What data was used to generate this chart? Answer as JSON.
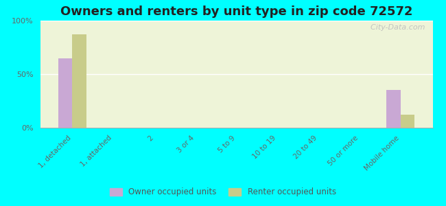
{
  "title": "Owners and renters by unit type in zip code 72572",
  "categories": [
    "1, detached",
    "1, attached",
    "2",
    "3 or 4",
    "5 to 9",
    "10 to 19",
    "20 to 49",
    "50 or more",
    "Mobile home"
  ],
  "owner_values": [
    65,
    0,
    0,
    0,
    0,
    0,
    0,
    0,
    35
  ],
  "renter_values": [
    87,
    0,
    0,
    0,
    0,
    0,
    0,
    0,
    12
  ],
  "owner_color": "#c9a8d4",
  "renter_color": "#c8cc8a",
  "background_color": "#00ffff",
  "plot_bg_color": "#eef4d8",
  "ylim": [
    0,
    100
  ],
  "yticks": [
    0,
    50,
    100
  ],
  "ytick_labels": [
    "0%",
    "50%",
    "100%"
  ],
  "watermark": "  City-Data.com",
  "legend_owner": "Owner occupied units",
  "legend_renter": "Renter occupied units",
  "bar_width": 0.35,
  "title_fontsize": 13
}
